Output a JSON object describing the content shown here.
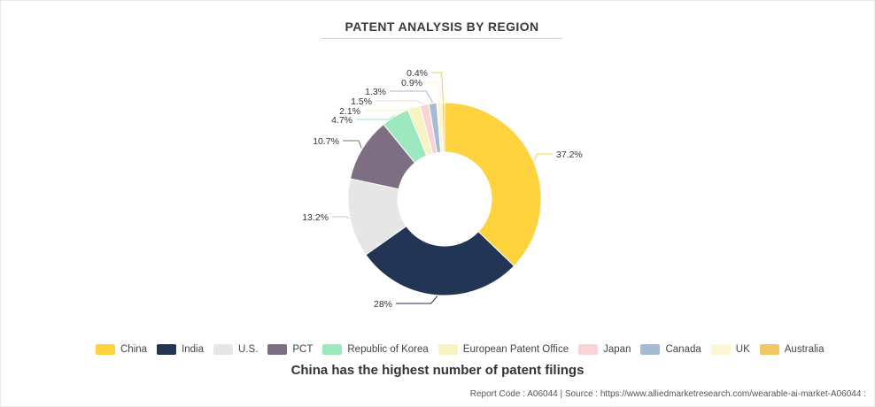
{
  "chart_data": {
    "type": "pie",
    "title": "PATENT ANALYSIS BY REGION",
    "donut": true,
    "legend_position": "bottom",
    "slices": [
      {
        "label": "China",
        "value": 37.2,
        "display": "37.2%",
        "color": "#ffd33d"
      },
      {
        "label": "India",
        "value": 28,
        "display": "28%",
        "color": "#233555"
      },
      {
        "label": "U.S.",
        "value": 13.2,
        "display": "13.2%",
        "color": "#e6e6e6"
      },
      {
        "label": "PCT",
        "value": 10.7,
        "display": "10.7%",
        "color": "#7e6e84"
      },
      {
        "label": "Republic of Korea",
        "value": 4.7,
        "display": "4.7%",
        "color": "#9ee8c0"
      },
      {
        "label": "European Patent Office",
        "value": 2.1,
        "display": "2.1%",
        "color": "#f7f4c3"
      },
      {
        "label": "Japan",
        "value": 1.5,
        "display": "1.5%",
        "color": "#f8d4d6"
      },
      {
        "label": "Canada",
        "value": 1.3,
        "display": "1.3%",
        "color": "#a3bcd3"
      },
      {
        "label": "UK",
        "value": 0.9,
        "display": "0.9%",
        "color": "#fdf6d3"
      },
      {
        "label": "Australia",
        "value": 0.4,
        "display": "0.4%",
        "color": "#f0c865"
      }
    ]
  },
  "caption": "China has the highest number of patent filings",
  "footer": "Report Code : A06044  |  Source : https://www.alliedmarketresearch.com/wearable-ai-market-A06044 :"
}
